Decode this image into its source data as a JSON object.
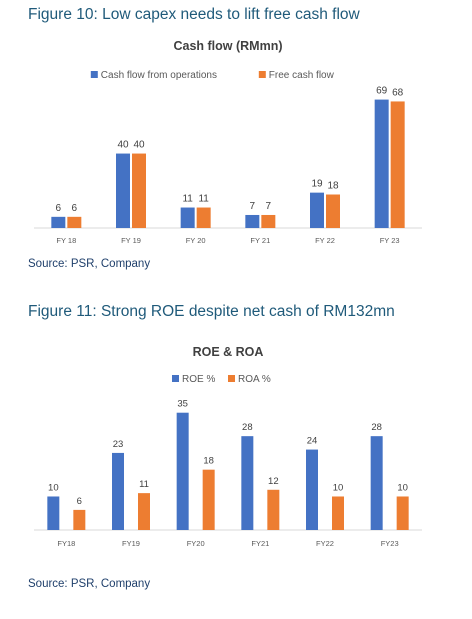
{
  "figures": [
    {
      "caption": "Figure 10: Low capex needs to lift free cash flow",
      "source": "Source: PSR, Company",
      "colors": [
        "#4472c4",
        "#ed7d31"
      ]
    },
    {
      "caption": "Figure 11: Strong ROE despite net cash of RM132mn",
      "source": "Source: PSR, Company",
      "colors": [
        "#4472c4",
        "#ed7d31"
      ]
    }
  ],
  "chart_data": [
    {
      "type": "bar",
      "title": "Cash flow (RMmn)",
      "categories": [
        "FY 18",
        "FY 19",
        "FY 20",
        "FY 21",
        "FY 22",
        "FY 23"
      ],
      "series": [
        {
          "name": "Cash flow from operations",
          "values": [
            6,
            40,
            11,
            7,
            19,
            69
          ]
        },
        {
          "name": "Free cash flow",
          "values": [
            6,
            40,
            11,
            7,
            18,
            68
          ]
        }
      ],
      "ylim": [
        0,
        72
      ],
      "grid": false,
      "legend": "top"
    },
    {
      "type": "bar",
      "title": "ROE & ROA",
      "categories": [
        "FY18",
        "FY19",
        "FY20",
        "FY21",
        "FY22",
        "FY23"
      ],
      "series": [
        {
          "name": "ROE %",
          "values": [
            10,
            23,
            35,
            28,
            24,
            28
          ]
        },
        {
          "name": "ROA %",
          "values": [
            6,
            11,
            18,
            12,
            10,
            10
          ]
        }
      ],
      "ylim": [
        0,
        37
      ],
      "grid": false,
      "legend": "top"
    }
  ]
}
